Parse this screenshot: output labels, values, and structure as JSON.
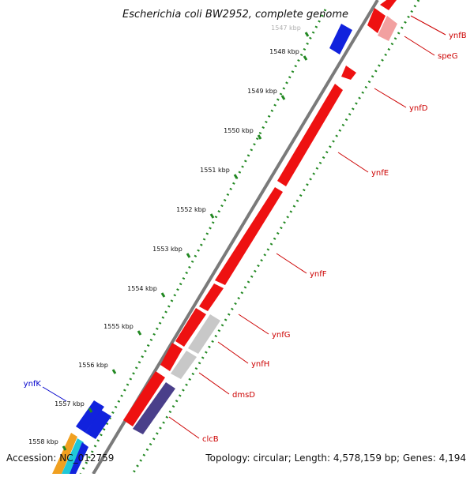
{
  "title": "Escherichia coli BW2952, complete genome",
  "ticks": [
    {
      "label": "1547 kbp"
    },
    {
      "label": "1548 kbp"
    },
    {
      "label": "1549 kbp"
    },
    {
      "label": "1550 kbp"
    },
    {
      "label": "1551 kbp"
    },
    {
      "label": "1552 kbp"
    },
    {
      "label": "1553 kbp"
    },
    {
      "label": "1554 kbp"
    },
    {
      "label": "1555 kbp"
    },
    {
      "label": "1556 kbp"
    },
    {
      "label": "1557 kbp"
    },
    {
      "label": "1558 kbp"
    }
  ],
  "gene_labels": [
    {
      "name": "ynfB",
      "strand": "forward"
    },
    {
      "name": "speG",
      "strand": "forward"
    },
    {
      "name": "ynfD",
      "strand": "forward"
    },
    {
      "name": "ynfE",
      "strand": "forward"
    },
    {
      "name": "ynfF",
      "strand": "forward"
    },
    {
      "name": "ynfG",
      "strand": "forward"
    },
    {
      "name": "ynfH",
      "strand": "forward"
    },
    {
      "name": "dmsD",
      "strand": "forward"
    },
    {
      "name": "clcB",
      "strand": "forward"
    },
    {
      "name": "ynfK",
      "strand": "reverse"
    }
  ],
  "colors": {
    "forward_gene": "#ee1111",
    "reverse_gene": "#1122dd",
    "pseudo_gene": "#c8c8c8",
    "rna_gene": "#f2a0a0",
    "dark_gene": "#4a3f8a",
    "backbone": "#7a7a7a",
    "ruler_dots": "#228822",
    "label_forward": "#cc0000",
    "label_reverse": "#0000cc"
  },
  "footer": {
    "accession": "Accession: NC_012759",
    "summary": "Topology: circular; Length: 4,578,159 bp; Genes: 4,194"
  }
}
